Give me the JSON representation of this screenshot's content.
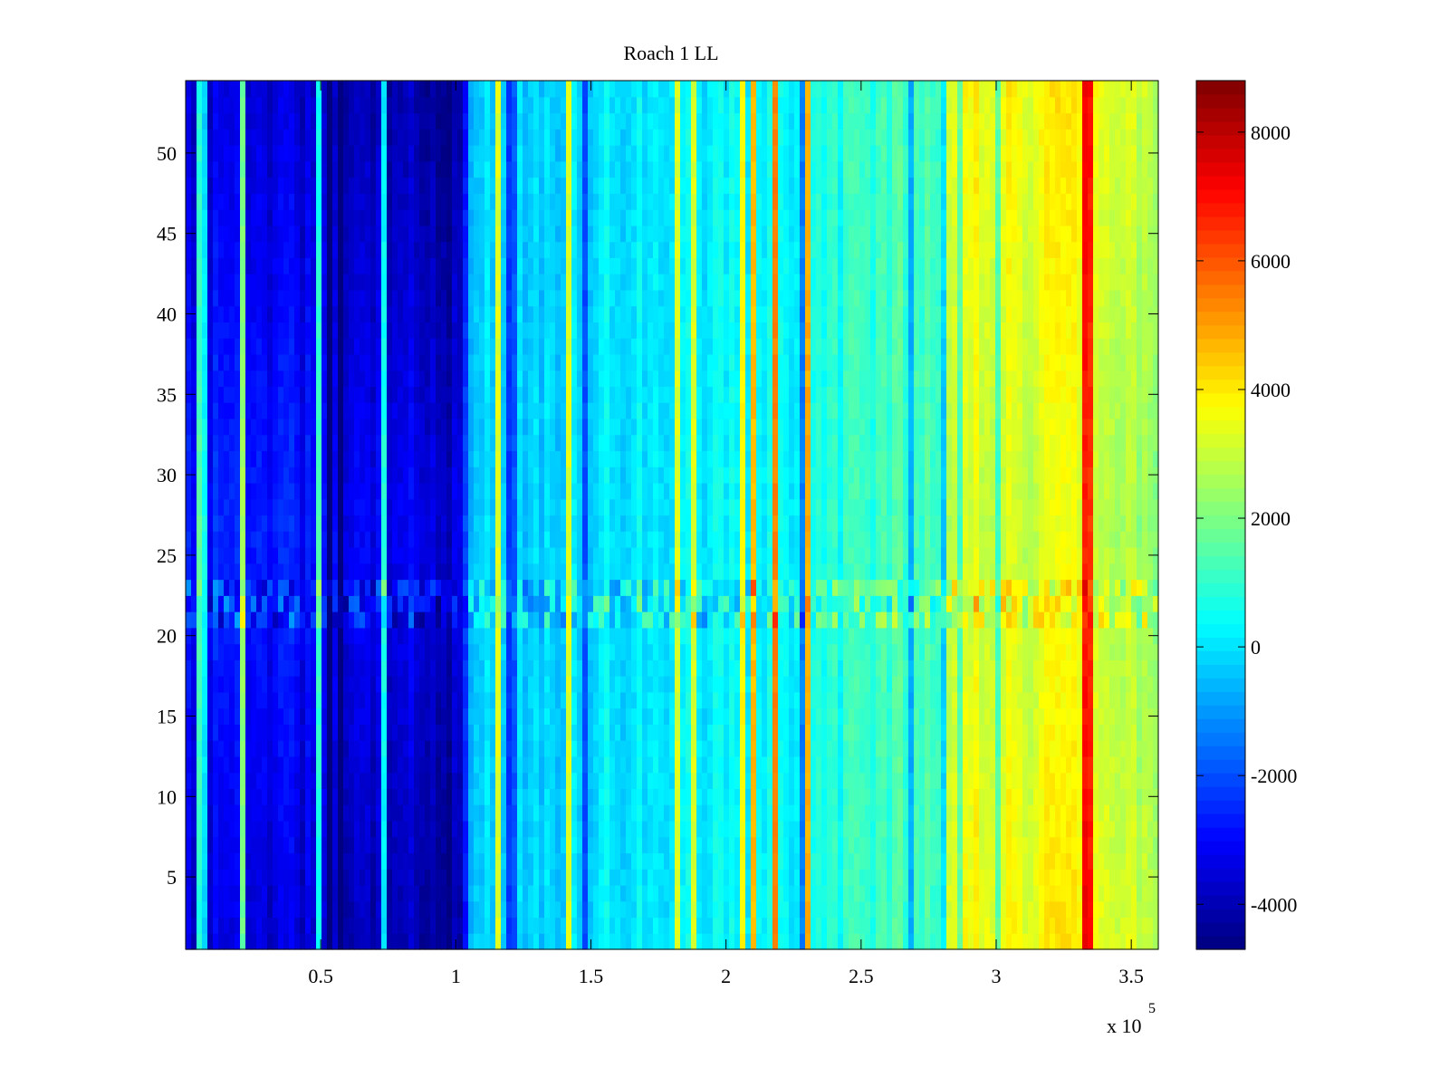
{
  "chart_data": {
    "type": "heatmap",
    "title": "Roach 1 LL",
    "xlabel": "",
    "ylabel": "",
    "x_exponent": "x 10",
    "x_exponent_power": "5",
    "xlim": [
      0,
      3.6
    ],
    "ylim": [
      0.5,
      54.5
    ],
    "x_ticks": [
      0.5,
      1,
      1.5,
      2,
      2.5,
      3,
      3.5
    ],
    "x_tick_labels": [
      "0.5",
      "1",
      "1.5",
      "2",
      "2.5",
      "3",
      "3.5"
    ],
    "y_ticks": [
      5,
      10,
      15,
      20,
      25,
      30,
      35,
      40,
      45,
      50
    ],
    "y_tick_labels": [
      "5",
      "10",
      "15",
      "20",
      "25",
      "30",
      "35",
      "40",
      "45",
      "50"
    ],
    "colorbar": {
      "colormap": "jet",
      "clim": [
        -4700,
        8800
      ],
      "ticks": [
        -4000,
        -2000,
        0,
        2000,
        4000,
        6000,
        8000
      ],
      "tick_labels": [
        "-4000",
        "-2000",
        "0",
        "2000",
        "4000",
        "6000",
        "8000"
      ]
    },
    "rows": 54,
    "column_profile": [
      {
        "x": 0.0,
        "value": -2600
      },
      {
        "x": 0.4,
        "value": -2700
      },
      {
        "x": 0.8,
        "value": -3200
      },
      {
        "x": 1.02,
        "value": -3600
      },
      {
        "x": 1.05,
        "value": -400
      },
      {
        "x": 1.5,
        "value": 0
      },
      {
        "x": 2.0,
        "value": 200
      },
      {
        "x": 2.3,
        "value": 400
      },
      {
        "x": 2.5,
        "value": 1000
      },
      {
        "x": 2.8,
        "value": 1500
      },
      {
        "x": 2.85,
        "value": 3000
      },
      {
        "x": 3.3,
        "value": 3200
      },
      {
        "x": 3.6,
        "value": 2400
      }
    ],
    "row_profile_note": "",
    "colors": {
      "frame": "#000000",
      "background": "#ffffff"
    }
  }
}
